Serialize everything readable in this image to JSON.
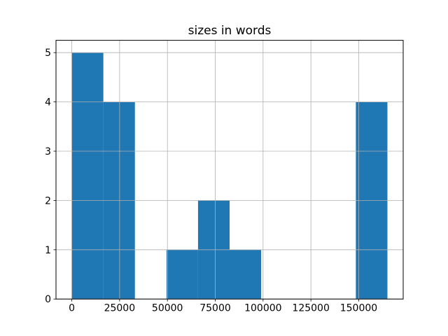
{
  "figure": {
    "background": "#ffffff"
  },
  "chart_data": {
    "type": "bar",
    "subtype": "histogram",
    "title": "sizes in words",
    "xlabel": "",
    "ylabel": "",
    "bar_color": "#1f77b4",
    "grid_color": "#b0b0b0",
    "axis_color": "#000000",
    "grid": true,
    "bin_edges": [
      0,
      16500,
      33000,
      49500,
      66000,
      82500,
      99000,
      115500,
      132000,
      148500,
      165000
    ],
    "counts": [
      5,
      4,
      0,
      1,
      2,
      1,
      0,
      0,
      0,
      4
    ],
    "xlim": [
      -8250,
      173250
    ],
    "ylim": [
      0,
      5.25
    ],
    "xticks": [
      {
        "value": 0,
        "label": "0"
      },
      {
        "value": 25000,
        "label": "25000"
      },
      {
        "value": 50000,
        "label": "50000"
      },
      {
        "value": 75000,
        "label": "75000"
      },
      {
        "value": 100000,
        "label": "100000"
      },
      {
        "value": 125000,
        "label": "125000"
      },
      {
        "value": 150000,
        "label": "150000"
      }
    ],
    "yticks": [
      {
        "value": 0,
        "label": "0"
      },
      {
        "value": 1,
        "label": "1"
      },
      {
        "value": 2,
        "label": "2"
      },
      {
        "value": 3,
        "label": "3"
      },
      {
        "value": 4,
        "label": "4"
      },
      {
        "value": 5,
        "label": "5"
      }
    ]
  }
}
